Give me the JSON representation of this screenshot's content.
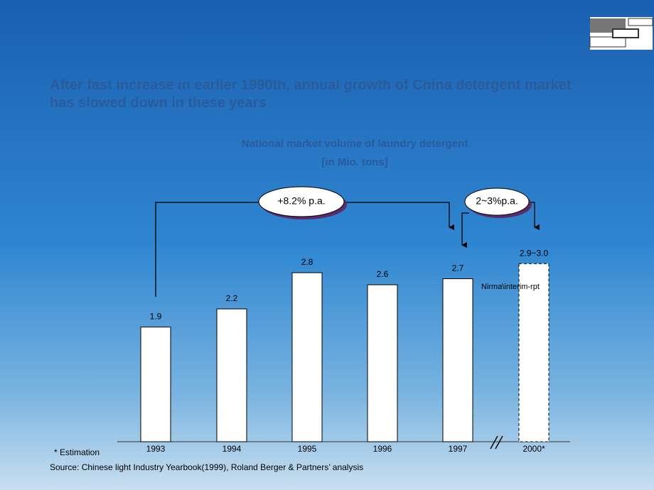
{
  "title": "After fast increase in earlier 1990th, annual growth of China detergent market has slowed down in these years",
  "chart_data": {
    "type": "bar",
    "title": "National market volume of laundry detergent",
    "subtitle": "[in Mio. tons]",
    "categories": [
      "1993",
      "1994",
      "1995",
      "1996",
      "1997",
      "2000*"
    ],
    "values": [
      1.9,
      2.2,
      2.8,
      2.6,
      2.7,
      2.95
    ],
    "value_labels": [
      "1.9",
      "2.2",
      "2.8",
      "2.6",
      "2.7",
      "2.9~3.0"
    ],
    "dashed": [
      false,
      false,
      false,
      false,
      false,
      true
    ],
    "color": "#ffffff",
    "annotations": [
      "+8.2% p.a.",
      "2~3%p.a.",
      "Nirma\\interim-rpt"
    ]
  },
  "footnote": "* Estimation",
  "source": "Source: Chinese light Industry Yearbook(1999), Roland Berger & Partners’ analysis"
}
